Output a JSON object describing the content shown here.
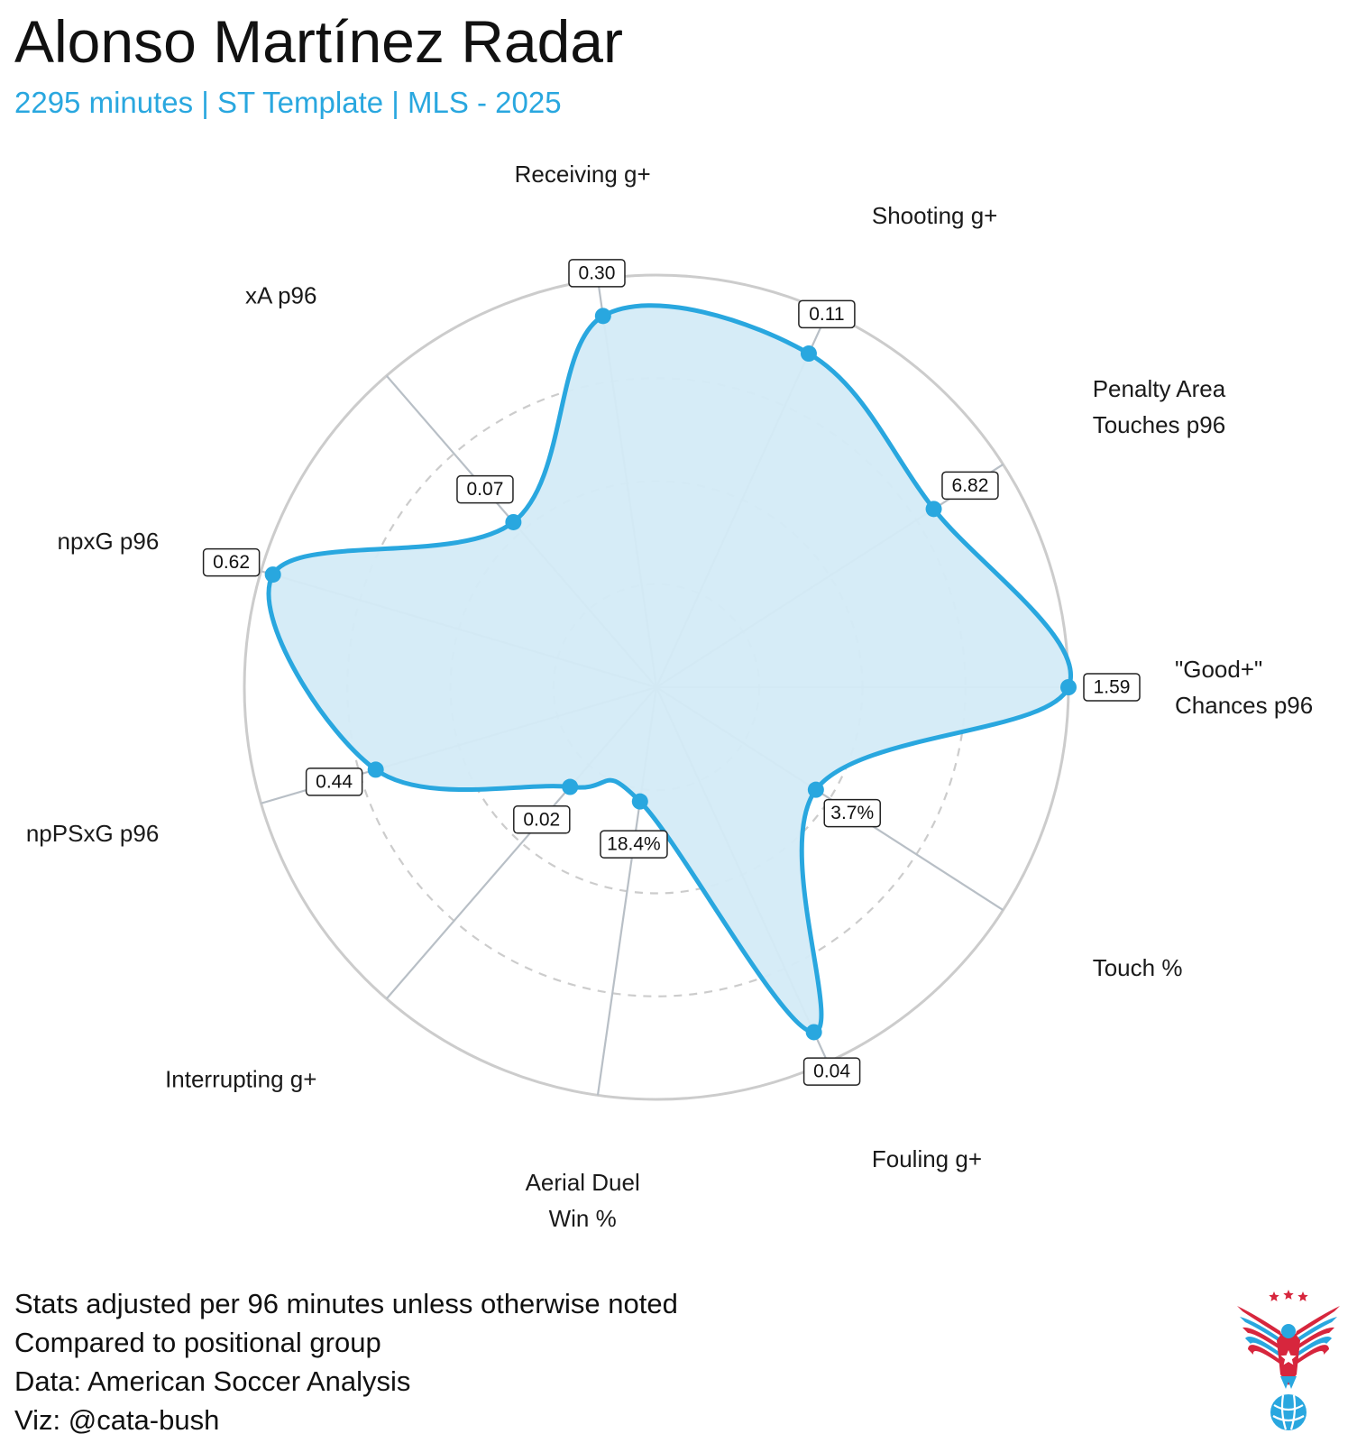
{
  "title": "Alonso Martínez Radar",
  "subtitle": "2295 minutes | ST Template | MLS - 2025",
  "colors": {
    "accent": "#29a7df",
    "fill": "#d4ebf7",
    "grid": "#cccccc",
    "spoke": "#b8bfc6",
    "logo_red": "#d7263d",
    "logo_blue": "#29a7df"
  },
  "caption": [
    "Stats adjusted per 96 minutes unless otherwise noted",
    "Compared to positional group",
    "Data: American Soccer Analysis",
    "Viz: @cata-bush"
  ],
  "logo": {
    "icon": "eagle-soccer-logo-icon"
  },
  "chart_data": {
    "type": "radar",
    "title": "Alonso Martínez Radar",
    "scale": [
      0,
      100
    ],
    "grid_rings": [
      25,
      50,
      75,
      100
    ],
    "axes": [
      {
        "label_lines": [
          "\"Good+\"",
          "Chances p96"
        ],
        "value_label": "1.59",
        "percentile": 100
      },
      {
        "label_lines": [
          "Penalty Area",
          "Touches p96"
        ],
        "value_label": "6.82",
        "percentile": 80
      },
      {
        "label_lines": [
          "Shooting g+"
        ],
        "value_label": "0.11",
        "percentile": 89
      },
      {
        "label_lines": [
          "Receiving g+"
        ],
        "value_label": "0.30",
        "percentile": 91
      },
      {
        "label_lines": [
          "xA p96"
        ],
        "value_label": "0.07",
        "percentile": 53
      },
      {
        "label_lines": [
          "npxG p96"
        ],
        "value_label": "0.62",
        "percentile": 97
      },
      {
        "label_lines": [
          "npPSxG p96"
        ],
        "value_label": "0.44",
        "percentile": 71
      },
      {
        "label_lines": [
          "Interrupting g+"
        ],
        "value_label": "0.02",
        "percentile": 32
      },
      {
        "label_lines": [
          "Aerial Duel",
          "Win %"
        ],
        "value_label": "18.4%",
        "percentile": 28
      },
      {
        "label_lines": [
          "Fouling g+"
        ],
        "value_label": "0.04",
        "percentile": 92
      },
      {
        "label_lines": [
          "Touch %"
        ],
        "value_label": "3.7%",
        "percentile": 46
      }
    ]
  }
}
